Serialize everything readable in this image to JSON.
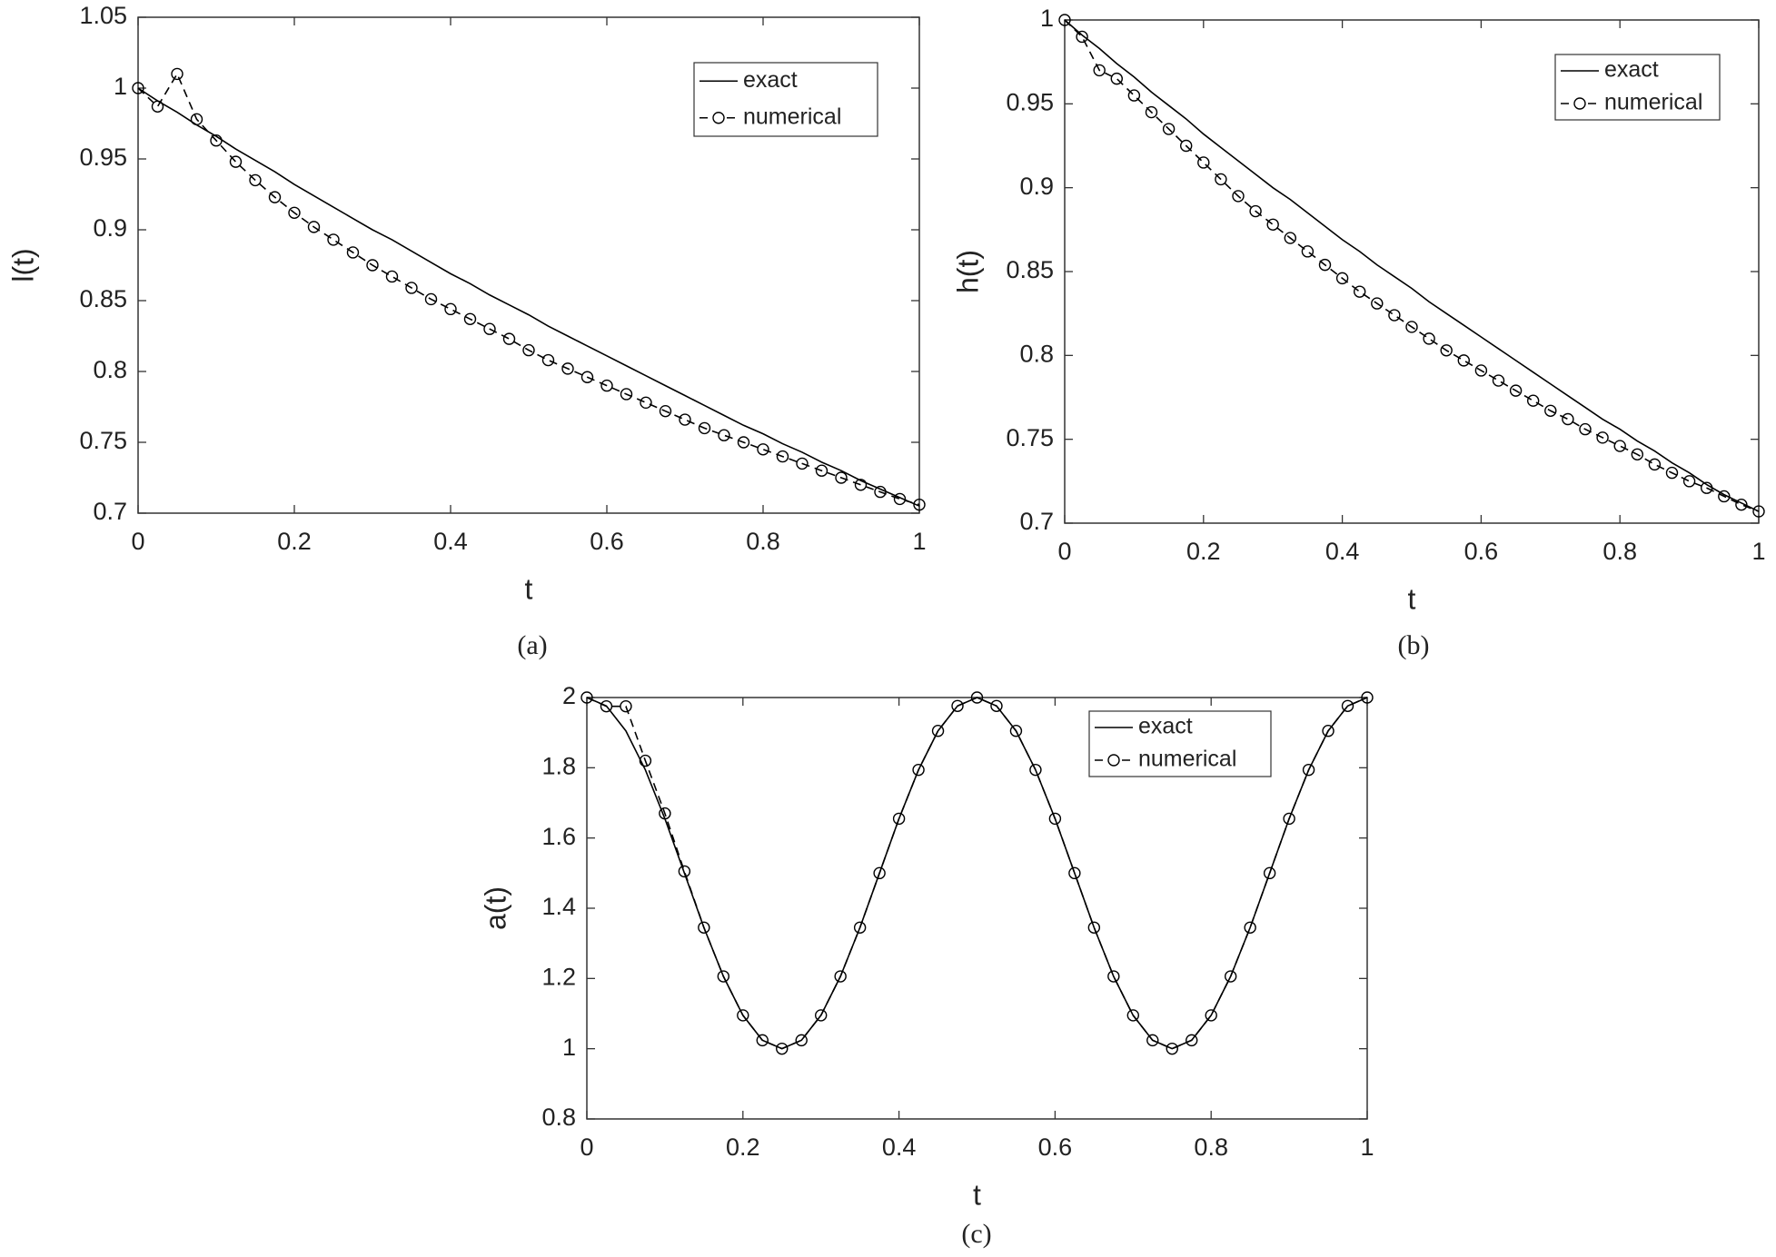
{
  "chart_data": [
    {
      "type": "line",
      "caption": "(a)",
      "xlabel": "t",
      "ylabel": "l(t)",
      "x": [
        0,
        0.025,
        0.05,
        0.075,
        0.1,
        0.125,
        0.15,
        0.175,
        0.2,
        0.225,
        0.25,
        0.275,
        0.3,
        0.325,
        0.35,
        0.375,
        0.4,
        0.425,
        0.45,
        0.475,
        0.5,
        0.525,
        0.55,
        0.575,
        0.6,
        0.625,
        0.65,
        0.675,
        0.7,
        0.725,
        0.75,
        0.775,
        0.8,
        0.825,
        0.85,
        0.875,
        0.9,
        0.925,
        0.95,
        0.975,
        1
      ],
      "series": [
        {
          "name": "exact",
          "color": "#000000",
          "linestyle": "solid",
          "values": [
            1,
            0.991,
            0.983,
            0.974,
            0.966,
            0.957,
            0.949,
            0.941,
            0.932,
            0.924,
            0.916,
            0.908,
            0.9,
            0.893,
            0.885,
            0.877,
            0.869,
            0.862,
            0.854,
            0.847,
            0.84,
            0.832,
            0.825,
            0.818,
            0.811,
            0.804,
            0.797,
            0.79,
            0.783,
            0.776,
            0.769,
            0.762,
            0.756,
            0.749,
            0.743,
            0.736,
            0.73,
            0.723,
            0.717,
            0.711,
            0.705
          ]
        },
        {
          "name": "numerical",
          "color": "#000000",
          "linestyle": "dashed",
          "marker": "o",
          "values": [
            1,
            0.987,
            1.01,
            0.978,
            0.963,
            0.948,
            0.935,
            0.923,
            0.912,
            0.902,
            0.893,
            0.884,
            0.875,
            0.867,
            0.859,
            0.851,
            0.844,
            0.837,
            0.83,
            0.823,
            0.815,
            0.808,
            0.802,
            0.796,
            0.79,
            0.784,
            0.778,
            0.772,
            0.766,
            0.76,
            0.755,
            0.75,
            0.745,
            0.74,
            0.735,
            0.73,
            0.725,
            0.72,
            0.715,
            0.71,
            0.706
          ]
        }
      ],
      "xlim": [
        0,
        1
      ],
      "xticks": [
        0,
        0.2,
        0.4,
        0.6,
        0.8,
        1
      ],
      "ylim": [
        0.7,
        1.05
      ],
      "yticks": [
        0.7,
        0.75,
        0.8,
        0.85,
        0.9,
        0.95,
        1,
        1.05
      ],
      "legend": "upper right"
    },
    {
      "type": "line",
      "caption": "(b)",
      "xlabel": "t",
      "ylabel": "h(t)",
      "x": [
        0,
        0.025,
        0.05,
        0.075,
        0.1,
        0.125,
        0.15,
        0.175,
        0.2,
        0.225,
        0.25,
        0.275,
        0.3,
        0.325,
        0.35,
        0.375,
        0.4,
        0.425,
        0.45,
        0.475,
        0.5,
        0.525,
        0.55,
        0.575,
        0.6,
        0.625,
        0.65,
        0.675,
        0.7,
        0.725,
        0.75,
        0.775,
        0.8,
        0.825,
        0.85,
        0.875,
        0.9,
        0.925,
        0.95,
        0.975,
        1
      ],
      "series": [
        {
          "name": "exact",
          "color": "#000000",
          "linestyle": "solid",
          "values": [
            1,
            0.991,
            0.983,
            0.974,
            0.966,
            0.957,
            0.949,
            0.941,
            0.932,
            0.924,
            0.916,
            0.908,
            0.9,
            0.893,
            0.885,
            0.877,
            0.869,
            0.862,
            0.854,
            0.847,
            0.84,
            0.832,
            0.825,
            0.818,
            0.811,
            0.804,
            0.797,
            0.79,
            0.783,
            0.776,
            0.769,
            0.762,
            0.756,
            0.749,
            0.743,
            0.736,
            0.73,
            0.723,
            0.717,
            0.712,
            0.707
          ]
        },
        {
          "name": "numerical",
          "color": "#000000",
          "linestyle": "dashed",
          "marker": "o",
          "values": [
            1,
            0.99,
            0.97,
            0.965,
            0.955,
            0.945,
            0.935,
            0.925,
            0.915,
            0.905,
            0.895,
            0.886,
            0.878,
            0.87,
            0.862,
            0.854,
            0.846,
            0.838,
            0.831,
            0.824,
            0.817,
            0.81,
            0.803,
            0.797,
            0.791,
            0.785,
            0.779,
            0.773,
            0.767,
            0.762,
            0.756,
            0.751,
            0.746,
            0.741,
            0.735,
            0.73,
            0.725,
            0.721,
            0.716,
            0.711,
            0.707
          ]
        }
      ],
      "xlim": [
        0,
        1
      ],
      "xticks": [
        0,
        0.2,
        0.4,
        0.6,
        0.8,
        1
      ],
      "ylim": [
        0.7,
        1
      ],
      "yticks": [
        0.7,
        0.75,
        0.8,
        0.85,
        0.9,
        0.95,
        1
      ],
      "legend": "upper right"
    },
    {
      "type": "line",
      "caption": "(c)",
      "xlabel": "t",
      "ylabel": "a(t)",
      "x": [
        0,
        0.025,
        0.05,
        0.075,
        0.1,
        0.125,
        0.15,
        0.175,
        0.2,
        0.225,
        0.25,
        0.275,
        0.3,
        0.325,
        0.35,
        0.375,
        0.4,
        0.425,
        0.45,
        0.475,
        0.5,
        0.525,
        0.55,
        0.575,
        0.6,
        0.625,
        0.65,
        0.675,
        0.7,
        0.725,
        0.75,
        0.775,
        0.8,
        0.825,
        0.85,
        0.875,
        0.9,
        0.925,
        0.95,
        0.975,
        1
      ],
      "series": [
        {
          "name": "exact",
          "color": "#000000",
          "linestyle": "solid",
          "values": [
            2,
            1.976,
            1.905,
            1.794,
            1.655,
            1.5,
            1.345,
            1.206,
            1.095,
            1.024,
            1,
            1.024,
            1.095,
            1.206,
            1.345,
            1.5,
            1.655,
            1.794,
            1.905,
            1.976,
            2,
            1.976,
            1.905,
            1.794,
            1.655,
            1.5,
            1.345,
            1.206,
            1.095,
            1.024,
            1,
            1.024,
            1.095,
            1.206,
            1.345,
            1.5,
            1.655,
            1.794,
            1.905,
            1.976,
            2
          ]
        },
        {
          "name": "numerical",
          "color": "#000000",
          "linestyle": "dashed",
          "marker": "o",
          "values": [
            2,
            1.975,
            1.975,
            1.82,
            1.67,
            1.505,
            1.345,
            1.206,
            1.095,
            1.024,
            1,
            1.024,
            1.095,
            1.206,
            1.345,
            1.5,
            1.655,
            1.794,
            1.905,
            1.976,
            2,
            1.976,
            1.905,
            1.794,
            1.655,
            1.5,
            1.345,
            1.206,
            1.095,
            1.024,
            1,
            1.024,
            1.095,
            1.206,
            1.345,
            1.5,
            1.655,
            1.794,
            1.905,
            1.976,
            2
          ]
        }
      ],
      "xlim": [
        0,
        1
      ],
      "xticks": [
        0,
        0.2,
        0.4,
        0.6,
        0.8,
        1
      ],
      "ylim": [
        0.8,
        2
      ],
      "yticks": [
        0.8,
        1,
        1.2,
        1.4,
        1.6,
        1.8,
        2
      ],
      "legend": "upper right"
    }
  ]
}
